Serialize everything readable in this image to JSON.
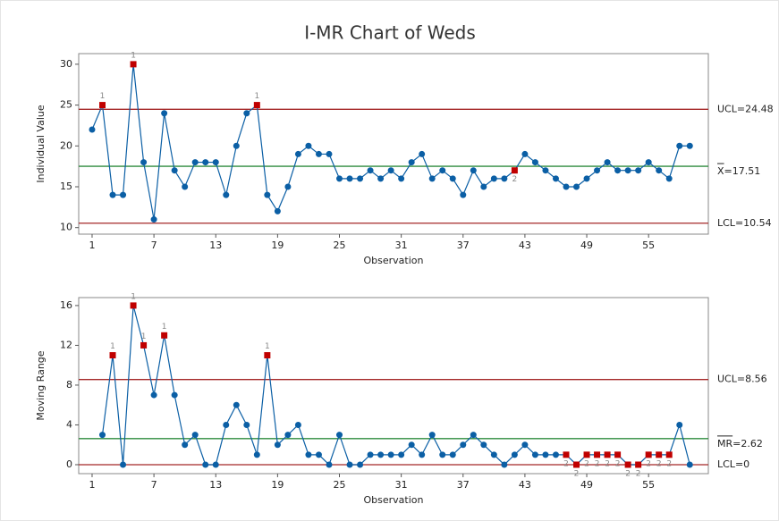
{
  "chart_data": [
    {
      "type": "line",
      "title": "I-MR Chart of Weds",
      "y_label": "Individual Value",
      "x_label": "Observation",
      "x": [
        1,
        2,
        3,
        4,
        5,
        6,
        7,
        8,
        9,
        10,
        11,
        12,
        13,
        14,
        15,
        16,
        17,
        18,
        19,
        20,
        21,
        22,
        23,
        24,
        25,
        26,
        27,
        28,
        29,
        30,
        31,
        32,
        33,
        34,
        35,
        36,
        37,
        38,
        39,
        40,
        41,
        42,
        43,
        44,
        45,
        46,
        47,
        48,
        49,
        50,
        51,
        52,
        53,
        54,
        55,
        56,
        57,
        58,
        59
      ],
      "values": [
        22,
        25,
        14,
        14,
        30,
        18,
        11,
        24,
        17,
        15,
        18,
        18,
        18,
        14,
        20,
        24,
        25,
        14,
        12,
        15,
        19,
        20,
        19,
        19,
        16,
        16,
        16,
        17,
        16,
        17,
        16,
        18,
        19,
        16,
        17,
        16,
        14,
        17,
        15,
        16,
        16,
        17,
        19,
        18,
        17,
        16,
        15,
        15,
        16,
        17,
        18,
        17,
        17,
        17,
        18,
        17,
        16,
        20,
        20
      ],
      "flags": [
        null,
        "1",
        null,
        null,
        "1",
        null,
        null,
        null,
        null,
        null,
        null,
        null,
        null,
        null,
        null,
        null,
        "1",
        null,
        null,
        null,
        null,
        null,
        null,
        null,
        null,
        null,
        null,
        null,
        null,
        null,
        null,
        null,
        null,
        null,
        null,
        null,
        null,
        null,
        null,
        null,
        null,
        "2",
        null,
        null,
        null,
        null,
        null,
        null,
        null,
        null,
        null,
        null,
        null,
        null,
        null,
        null,
        null,
        null,
        null
      ],
      "color": "#0b5fa5",
      "flag_color": "#c00000",
      "limits": [
        {
          "value": 24.48,
          "label": "UCL=24.48",
          "color": "#a52828"
        },
        {
          "value": 17.51,
          "label": "X=17.51",
          "color": "#2e8b3e",
          "bar_over_symbol": true
        },
        {
          "value": 10.54,
          "label": "LCL=10.54",
          "color": "#a52828"
        }
      ],
      "xlim": [
        -0.3,
        60.8
      ],
      "xticks": [
        1,
        7,
        13,
        19,
        25,
        31,
        37,
        43,
        49,
        55
      ],
      "ylim": [
        9.2,
        31.3
      ],
      "yticks": [
        10,
        15,
        20,
        25,
        30
      ]
    },
    {
      "type": "line",
      "y_label": "Moving Range",
      "x_label": "Observation",
      "x": [
        2,
        3,
        4,
        5,
        6,
        7,
        8,
        9,
        10,
        11,
        12,
        13,
        14,
        15,
        16,
        17,
        18,
        19,
        20,
        21,
        22,
        23,
        24,
        25,
        26,
        27,
        28,
        29,
        30,
        31,
        32,
        33,
        34,
        35,
        36,
        37,
        38,
        39,
        40,
        41,
        42,
        43,
        44,
        45,
        46,
        47,
        48,
        49,
        50,
        51,
        52,
        53,
        54,
        55,
        56,
        57,
        58,
        59
      ],
      "values": [
        3,
        11,
        0,
        16,
        12,
        7,
        13,
        7,
        2,
        3,
        0,
        0,
        4,
        6,
        4,
        1,
        11,
        2,
        3,
        4,
        1,
        1,
        0,
        3,
        0,
        0,
        1,
        1,
        1,
        1,
        2,
        1,
        3,
        1,
        1,
        2,
        3,
        2,
        1,
        0,
        1,
        2,
        1,
        1,
        1,
        1,
        0,
        1,
        1,
        1,
        1,
        0,
        0,
        1,
        1,
        1,
        4,
        0
      ],
      "flags": [
        null,
        "1",
        null,
        "1",
        "1",
        null,
        "1",
        null,
        null,
        null,
        null,
        null,
        null,
        null,
        null,
        null,
        "1",
        null,
        null,
        null,
        null,
        null,
        null,
        null,
        null,
        null,
        null,
        null,
        null,
        null,
        null,
        null,
        null,
        null,
        null,
        null,
        null,
        null,
        null,
        null,
        null,
        null,
        null,
        null,
        null,
        "2",
        "2",
        "2",
        "2",
        "2",
        "2",
        "2",
        "2",
        "2",
        "2",
        "2",
        null,
        null
      ],
      "color": "#0b5fa5",
      "flag_color": "#c00000",
      "limits": [
        {
          "value": 8.56,
          "label": "UCL=8.56",
          "color": "#a52828"
        },
        {
          "value": 2.62,
          "label": "MR=2.62",
          "color": "#2e8b3e",
          "bar_over_symbol": true
        },
        {
          "value": 0,
          "label": "LCL=0",
          "color": "#a52828"
        }
      ],
      "xlim": [
        -0.3,
        60.8
      ],
      "xticks": [
        1,
        7,
        13,
        19,
        25,
        31,
        37,
        43,
        49,
        55
      ],
      "ylim": [
        -0.9,
        16.8
      ],
      "yticks": [
        0,
        4,
        8,
        12,
        16
      ]
    }
  ]
}
